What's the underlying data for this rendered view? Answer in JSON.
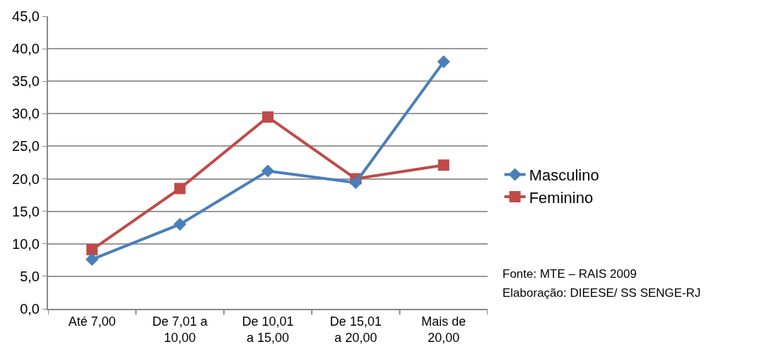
{
  "chart_data": {
    "type": "line",
    "categories": [
      "Até 7,00",
      "De 7,01 a 10,00",
      "De 10,01 a 15,00",
      "De 15,01 a 20,00",
      "Mais de 20,00"
    ],
    "series": [
      {
        "name": "Masculino",
        "color": "#4a7ebb",
        "marker": "diamond",
        "values": [
          7.6,
          13.0,
          21.2,
          19.4,
          38.0
        ]
      },
      {
        "name": "Feminino",
        "color": "#be4b48",
        "marker": "square",
        "values": [
          9.1,
          18.5,
          29.5,
          20.0,
          22.1
        ]
      }
    ],
    "ylim": [
      0,
      45
    ],
    "yticks": [
      {
        "value": 0,
        "label": "0,0"
      },
      {
        "value": 5,
        "label": "5,0"
      },
      {
        "value": 10,
        "label": "10,0"
      },
      {
        "value": 15,
        "label": "15,0"
      },
      {
        "value": 20,
        "label": "20,0"
      },
      {
        "value": 25,
        "label": "25,0"
      },
      {
        "value": 30,
        "label": "30,0"
      },
      {
        "value": 35,
        "label": "35,0"
      },
      {
        "value": 40,
        "label": "40,0"
      },
      {
        "value": 45,
        "label": "45,0"
      }
    ],
    "grid": "y",
    "legend": "right",
    "line_style": "solid",
    "annotations": [
      "Fonte: MTE – RAIS 2009",
      "Elaboração: DIEESE/ SS SENGE-RJ"
    ]
  }
}
